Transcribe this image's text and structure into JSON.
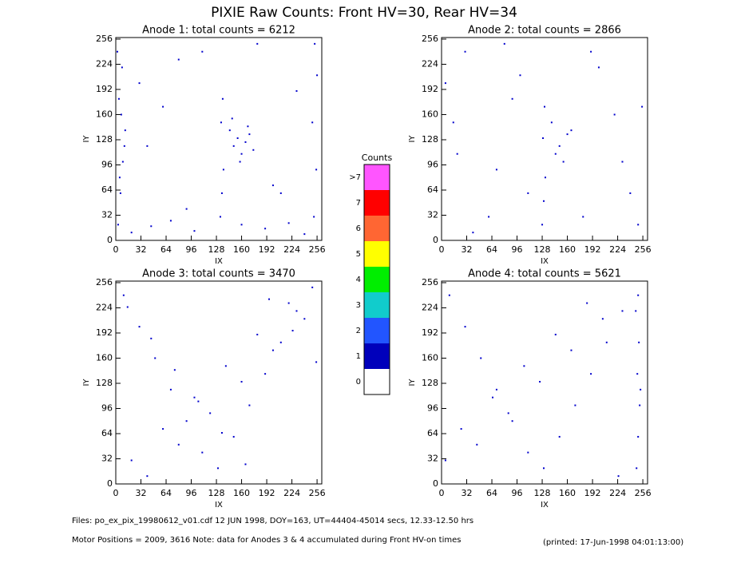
{
  "title": "PIXIE Raw Counts:  Front HV=30, Rear HV=34",
  "chart_data": [
    {
      "type": "scatter",
      "title": "Anode 1: total counts = 6212",
      "xlabel": "IX",
      "ylabel": "IY",
      "color": "#0000cc",
      "xlim": [
        0,
        262
      ],
      "ylim": [
        0,
        258
      ],
      "xticks": [
        0,
        32,
        64,
        96,
        128,
        160,
        192,
        224,
        256
      ],
      "yticks": [
        0,
        32,
        64,
        96,
        128,
        160,
        192,
        224,
        256
      ],
      "x": [
        3,
        6,
        9,
        12,
        4,
        8,
        2,
        11,
        5,
        7,
        252,
        255,
        250,
        256,
        253,
        20,
        45,
        70,
        100,
        160,
        190,
        220,
        240,
        133,
        135,
        137,
        134,
        136,
        145,
        150,
        155,
        160,
        165,
        170,
        148,
        158,
        168,
        175,
        30,
        80,
        200,
        60,
        230,
        110,
        40,
        210,
        90,
        180
      ],
      "y": [
        20,
        60,
        100,
        140,
        180,
        220,
        240,
        120,
        80,
        160,
        30,
        90,
        150,
        210,
        250,
        10,
        18,
        25,
        12,
        20,
        15,
        22,
        8,
        30,
        60,
        90,
        150,
        180,
        140,
        120,
        130,
        110,
        125,
        135,
        155,
        100,
        145,
        115,
        200,
        230,
        70,
        170,
        190,
        240,
        120,
        60,
        40,
        250
      ]
    },
    {
      "type": "scatter",
      "title": "Anode 2: total counts = 2866",
      "xlabel": "IX",
      "ylabel": "IY",
      "color": "#0000cc",
      "xlim": [
        0,
        262
      ],
      "ylim": [
        0,
        258
      ],
      "xticks": [
        0,
        32,
        64,
        96,
        128,
        160,
        192,
        224,
        256
      ],
      "yticks": [
        0,
        32,
        64,
        96,
        128,
        160,
        192,
        224,
        256
      ],
      "x": [
        5,
        15,
        30,
        60,
        90,
        110,
        200,
        230,
        250,
        255,
        128,
        130,
        132,
        129,
        131,
        140,
        150,
        160,
        145,
        155,
        165,
        40,
        80,
        180,
        220,
        70,
        240,
        20,
        100,
        190
      ],
      "y": [
        200,
        150,
        240,
        30,
        180,
        60,
        220,
        100,
        20,
        170,
        20,
        50,
        80,
        130,
        170,
        150,
        120,
        135,
        110,
        100,
        140,
        10,
        250,
        30,
        160,
        90,
        60,
        110,
        210,
        240
      ]
    },
    {
      "type": "scatter",
      "title": "Anode 3: total counts = 3470",
      "xlabel": "IX",
      "ylabel": "IY",
      "color": "#0000cc",
      "xlim": [
        0,
        262
      ],
      "ylim": [
        0,
        258
      ],
      "xticks": [
        0,
        32,
        64,
        96,
        128,
        160,
        192,
        224,
        256
      ],
      "yticks": [
        0,
        32,
        64,
        96,
        128,
        160,
        192,
        224,
        256
      ],
      "x": [
        10,
        30,
        50,
        70,
        90,
        110,
        130,
        150,
        170,
        190,
        210,
        230,
        250,
        20,
        60,
        100,
        140,
        180,
        220,
        40,
        80,
        120,
        160,
        200,
        240,
        15,
        45,
        75,
        105,
        135,
        165,
        195,
        225,
        255
      ],
      "y": [
        240,
        200,
        160,
        120,
        80,
        40,
        20,
        60,
        100,
        140,
        180,
        220,
        250,
        30,
        70,
        110,
        150,
        190,
        230,
        10,
        50,
        90,
        130,
        170,
        210,
        225,
        185,
        145,
        105,
        65,
        25,
        235,
        195,
        155
      ]
    },
    {
      "type": "scatter",
      "title": "Anode 4: total counts = 5621",
      "xlabel": "IX",
      "ylabel": "IY",
      "color": "#0000cc",
      "xlim": [
        0,
        262
      ],
      "ylim": [
        0,
        258
      ],
      "xticks": [
        0,
        32,
        64,
        96,
        128,
        160,
        192,
        224,
        256
      ],
      "yticks": [
        0,
        32,
        64,
        96,
        128,
        160,
        192,
        224,
        256
      ],
      "x": [
        248,
        250,
        252,
        249,
        251,
        247,
        250,
        253,
        10,
        30,
        50,
        70,
        90,
        110,
        130,
        150,
        170,
        190,
        210,
        230,
        5,
        25,
        65,
        105,
        145,
        185,
        225,
        45,
        85,
        125,
        165,
        205
      ],
      "y": [
        20,
        60,
        100,
        140,
        180,
        220,
        240,
        120,
        240,
        200,
        160,
        120,
        80,
        40,
        20,
        60,
        100,
        140,
        180,
        220,
        30,
        70,
        110,
        150,
        190,
        230,
        10,
        50,
        90,
        130,
        170,
        210
      ]
    }
  ],
  "colorbar": {
    "title": "Counts",
    "labels": [
      ">7",
      "7",
      "6",
      "5",
      "4",
      "3",
      "2",
      "1",
      "0"
    ],
    "colors": [
      "#ff55ff",
      "#ff0000",
      "#ff6633",
      "#ffff00",
      "#00ee00",
      "#11cccc",
      "#2255ff",
      "#0000bb",
      "#ffffff"
    ]
  },
  "footer": {
    "files": "Files: po_ex_pix_19980612_v01.cdf    12 JUN 1998, DOY=163, UT=44404-45014 secs, 12.33-12.50 hrs",
    "motor": "Motor Positions = 2009, 3616   Note: data for Anodes 3 & 4 accumulated during Front HV-on times",
    "printed": "(printed: 17-Jun-1998 04:01:13:00)"
  }
}
